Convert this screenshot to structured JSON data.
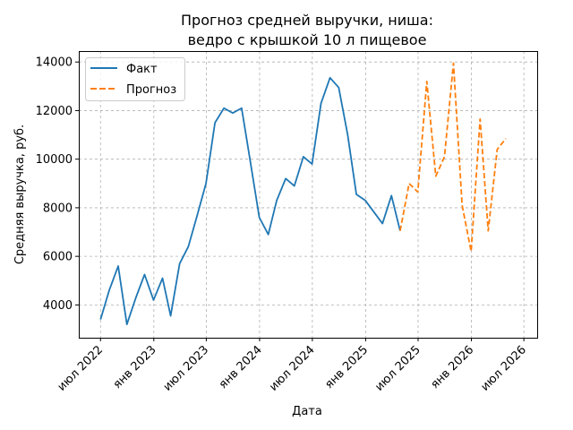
{
  "chart_data": {
    "type": "line",
    "title": [
      "Прогноз средней выручки, ниша:",
      "ведро с крышкой 10 л пищевое"
    ],
    "xlabel": "Дата",
    "ylabel": "Средняя выручка, руб.",
    "grid": true,
    "legend_position": "top-left",
    "x_ticks": [
      {
        "date": "2022-07-01",
        "label": "июл 2022"
      },
      {
        "date": "2023-01-01",
        "label": "янв 2023"
      },
      {
        "date": "2023-07-01",
        "label": "июл 2023"
      },
      {
        "date": "2024-01-01",
        "label": "янв 2024"
      },
      {
        "date": "2024-07-01",
        "label": "июл 2024"
      },
      {
        "date": "2025-01-01",
        "label": "янв 2025"
      },
      {
        "date": "2025-07-01",
        "label": "июл 2025"
      },
      {
        "date": "2026-01-01",
        "label": "янв 2026"
      },
      {
        "date": "2026-07-01",
        "label": "июл 2026"
      }
    ],
    "y_ticks": [
      4000,
      6000,
      8000,
      10000,
      12000,
      14000
    ],
    "xlim": [
      "2022-04-17",
      "2026-08-16"
    ],
    "ylim": [
      2650,
      14450
    ],
    "series": [
      {
        "name": "Факт",
        "color": "#1f77b4",
        "style": "solid",
        "points": [
          [
            "2022-07-01",
            3400
          ],
          [
            "2022-07-31",
            4600
          ],
          [
            "2022-08-31",
            5600
          ],
          [
            "2022-09-30",
            3200
          ],
          [
            "2022-10-31",
            4300
          ],
          [
            "2022-11-30",
            5250
          ],
          [
            "2022-12-31",
            4200
          ],
          [
            "2023-01-31",
            5100
          ],
          [
            "2023-02-28",
            3550
          ],
          [
            "2023-03-31",
            5700
          ],
          [
            "2023-04-30",
            6400
          ],
          [
            "2023-05-31",
            7700
          ],
          [
            "2023-06-30",
            9000
          ],
          [
            "2023-07-31",
            11500
          ],
          [
            "2023-08-31",
            12100
          ],
          [
            "2023-09-30",
            11900
          ],
          [
            "2023-10-31",
            12100
          ],
          [
            "2023-11-30",
            9900
          ],
          [
            "2023-12-31",
            7600
          ],
          [
            "2024-01-31",
            6900
          ],
          [
            "2024-02-29",
            8300
          ],
          [
            "2024-03-31",
            9200
          ],
          [
            "2024-04-30",
            8900
          ],
          [
            "2024-05-31",
            10100
          ],
          [
            "2024-06-30",
            9800
          ],
          [
            "2024-07-31",
            12300
          ],
          [
            "2024-08-31",
            13350
          ],
          [
            "2024-09-30",
            12950
          ],
          [
            "2024-10-31",
            11000
          ],
          [
            "2024-11-30",
            8550
          ],
          [
            "2024-12-31",
            8300
          ],
          [
            "2025-01-31",
            7800
          ],
          [
            "2025-02-28",
            7350
          ],
          [
            "2025-03-31",
            8500
          ],
          [
            "2025-04-30",
            7050
          ]
        ]
      },
      {
        "name": "Прогноз",
        "color": "#ff7f0e",
        "style": "dashed",
        "points": [
          [
            "2025-04-30",
            7050
          ],
          [
            "2025-05-31",
            9000
          ],
          [
            "2025-06-30",
            8650
          ],
          [
            "2025-07-31",
            13200
          ],
          [
            "2025-08-31",
            9300
          ],
          [
            "2025-09-30",
            10100
          ],
          [
            "2025-10-31",
            13950
          ],
          [
            "2025-11-30",
            8100
          ],
          [
            "2025-12-31",
            6200
          ],
          [
            "2026-01-31",
            11650
          ],
          [
            "2026-02-28",
            7050
          ],
          [
            "2026-03-31",
            10400
          ],
          [
            "2026-04-30",
            10850
          ]
        ]
      }
    ]
  }
}
